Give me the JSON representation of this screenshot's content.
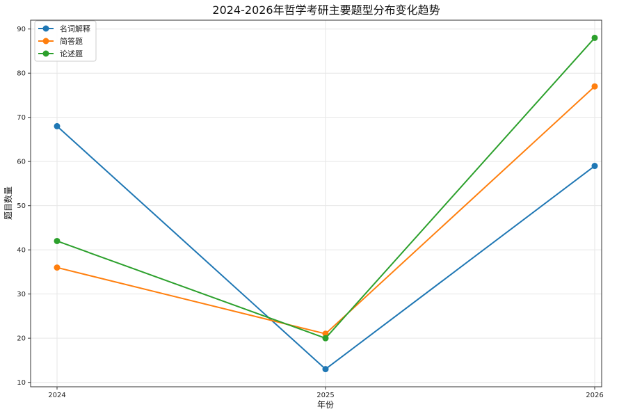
{
  "chart_data": {
    "type": "line",
    "title": "2024-2026年哲学考研主要题型分布变化趋势",
    "xlabel": "年份",
    "ylabel": "题目数量",
    "categories": [
      "2024",
      "2025",
      "2026"
    ],
    "ylim": [
      9,
      92
    ],
    "yticks": [
      10,
      20,
      30,
      40,
      50,
      60,
      70,
      80,
      90
    ],
    "grid": true,
    "legend_position": "top-left",
    "series": [
      {
        "name": "名词解释",
        "color": "#1f77b4",
        "values": [
          68,
          13,
          59
        ]
      },
      {
        "name": "简答题",
        "color": "#ff7f0e",
        "values": [
          36,
          21,
          77
        ]
      },
      {
        "name": "论述题",
        "color": "#2ca02c",
        "values": [
          42,
          20,
          88
        ]
      }
    ]
  }
}
